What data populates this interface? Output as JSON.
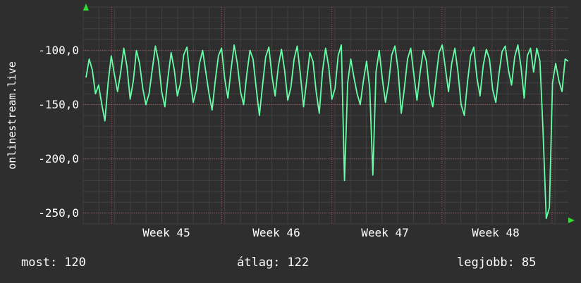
{
  "watermark": "onlinestream.live",
  "stats": {
    "most": {
      "label": "most:",
      "value": "120"
    },
    "atlag": {
      "label": "átlag:",
      "value": "122"
    },
    "legjobb": {
      "label": "legjobb:",
      "value": "85"
    }
  },
  "chart_data": {
    "type": "line",
    "title": "",
    "xlabel": "",
    "ylabel": "onlinestream.live",
    "yticks": [
      "-100,0",
      "-150,0",
      "-200,0",
      "-250,0"
    ],
    "ytick_values": [
      -100,
      -150,
      -200,
      -250
    ],
    "xticks": [
      "Week 45",
      "Week 46",
      "Week 47",
      "Week 48"
    ],
    "ylim": [
      -260,
      -60
    ],
    "grid": true,
    "legend_position": "none",
    "colors": {
      "background": "#2e2e2e",
      "grid_minor": "#404040",
      "grid_major": "#a05560",
      "line": "#66ffa8",
      "arrow": "#33dd33",
      "text": "#ffffff"
    },
    "values": [
      -125,
      -108,
      -118,
      -140,
      -132,
      -150,
      -165,
      -130,
      -105,
      -122,
      -138,
      -120,
      -98,
      -115,
      -145,
      -128,
      -100,
      -112,
      -135,
      -150,
      -140,
      -118,
      -96,
      -110,
      -138,
      -152,
      -125,
      -102,
      -118,
      -142,
      -130,
      -104,
      -97,
      -125,
      -148,
      -136,
      -112,
      -100,
      -120,
      -140,
      -155,
      -128,
      -105,
      -98,
      -126,
      -144,
      -118,
      -95,
      -112,
      -138,
      -150,
      -122,
      -100,
      -108,
      -135,
      -160,
      -132,
      -106,
      -97,
      -124,
      -142,
      -115,
      -99,
      -118,
      -146,
      -134,
      -108,
      -96,
      -122,
      -152,
      -128,
      -102,
      -110,
      -138,
      -158,
      -120,
      -98,
      -115,
      -145,
      -135,
      -105,
      -95,
      -220,
      -130,
      -108,
      -125,
      -140,
      -150,
      -128,
      -110,
      -135,
      -215,
      -120,
      -100,
      -126,
      -148,
      -130,
      -104,
      -96,
      -118,
      -158,
      -135,
      -108,
      -98,
      -122,
      -146,
      -120,
      -100,
      -110,
      -140,
      -152,
      -126,
      -102,
      -95,
      -116,
      -138,
      -112,
      -98,
      -120,
      -150,
      -160,
      -130,
      -105,
      -97,
      -125,
      -142,
      -114,
      -99,
      -108,
      -136,
      -148,
      -122,
      -101,
      -96,
      -118,
      -132,
      -106,
      -95,
      -115,
      -144,
      -105,
      -98,
      -120,
      -98,
      -110,
      -175,
      -255,
      -245,
      -130,
      -112,
      -128,
      -138,
      -108,
      -110
    ]
  }
}
